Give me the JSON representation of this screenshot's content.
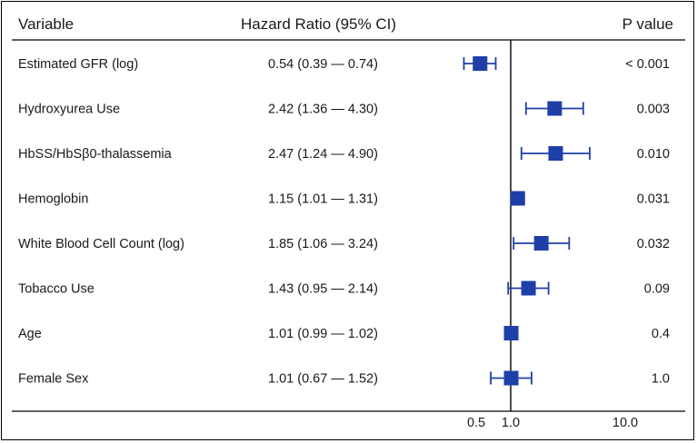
{
  "chart_data": {
    "type": "forest",
    "headers": {
      "variable": "Variable",
      "estimate": "Hazard Ratio (95% CI)",
      "pvalue": "P value"
    },
    "x_scale": "log",
    "xlim": [
      0.3,
      14
    ],
    "reference_line": 1.0,
    "x_ticks": [
      {
        "value": 0.5,
        "label": "0.5"
      },
      {
        "value": 1.0,
        "label": "1.0"
      },
      {
        "value": 10.0,
        "label": "10.0"
      }
    ],
    "marker_color": "#1f3fa8",
    "rows": [
      {
        "variable": "Estimated GFR (log)",
        "hr": 0.54,
        "lo": 0.39,
        "hi": 0.74,
        "ci_text": "0.54 (0.39 — 0.74)",
        "p": "< 0.001"
      },
      {
        "variable": "Hydroxyurea Use",
        "hr": 2.42,
        "lo": 1.36,
        "hi": 4.3,
        "ci_text": "2.42 (1.36 — 4.30)",
        "p": "0.003"
      },
      {
        "variable": "HbSS/HbSβ0-thalassemia",
        "hr": 2.47,
        "lo": 1.24,
        "hi": 4.9,
        "ci_text": "2.47 (1.24 — 4.90)",
        "p": "0.010"
      },
      {
        "variable": "Hemoglobin",
        "hr": 1.15,
        "lo": 1.01,
        "hi": 1.31,
        "ci_text": "1.15 (1.01 — 1.31)",
        "p": "0.031"
      },
      {
        "variable": "White Blood Cell Count (log)",
        "hr": 1.85,
        "lo": 1.06,
        "hi": 3.24,
        "ci_text": "1.85 (1.06 — 3.24)",
        "p": "0.032"
      },
      {
        "variable": "Tobacco Use",
        "hr": 1.43,
        "lo": 0.95,
        "hi": 2.14,
        "ci_text": "1.43 (0.95 — 2.14)",
        "p": "0.09"
      },
      {
        "variable": "Age",
        "hr": 1.01,
        "lo": 0.99,
        "hi": 1.02,
        "ci_text": "1.01 (0.99 — 1.02)",
        "p": "0.4"
      },
      {
        "variable": "Female Sex",
        "hr": 1.01,
        "lo": 0.67,
        "hi": 1.52,
        "ci_text": "1.01 (0.67 — 1.52)",
        "p": "1.0"
      }
    ]
  }
}
